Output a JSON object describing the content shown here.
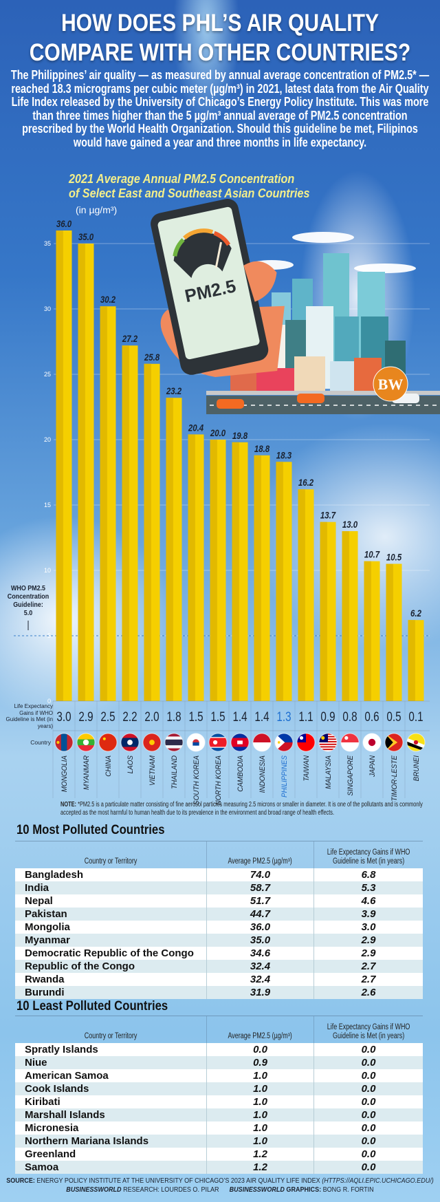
{
  "header": {
    "title_line1": "HOW DOES PHL’S AIR QUALITY",
    "title_line2": "COMPARE WITH OTHER COUNTRIES?",
    "intro": "The Philippines’ air quality — as measured by annual average concentration of PM2.5* — reached 18.3 micrograms per cubic meter (µg/m³) in 2021, latest data from the Air Quality Life Index released by the University of Chicago’s Energy Policy Institute. This was more than three times higher than the 5 µg/m³ annual average of PM2.5 concentration prescribed by the World Health Organization. Should this guideline be met, Filipinos would have gained a year and three months in life expectancy."
  },
  "chart_data": {
    "type": "bar",
    "title_line1": "2021 Average Annual PM2.5 Concentration",
    "title_line2": "of Select East and Southeast Asian Countries",
    "unit": "(in µg/m³)",
    "categories": [
      "MONGOLIA",
      "MYANMAR",
      "CHINA",
      "LAOS",
      "VIETNAM",
      "THAILAND",
      "SOUTH KOREA",
      "NORTH KOREA",
      "CAMBODIA",
      "INDONESIA",
      "PHILIPPINES",
      "TAIWAN",
      "MALAYSIA",
      "SINGAPORE",
      "JAPAN",
      "TIMOR-LESTE",
      "BRUNEI"
    ],
    "values": [
      36.0,
      35.0,
      30.2,
      27.2,
      25.8,
      23.2,
      20.4,
      20.0,
      19.8,
      18.8,
      18.3,
      16.2,
      13.7,
      13.0,
      10.7,
      10.5,
      6.2
    ],
    "value_labels": [
      "36.0",
      "35.0",
      "30.2",
      "27.2",
      "25.8",
      "23.2",
      "20.4",
      "20.0",
      "19.8",
      "18.8",
      "18.3",
      "16.2",
      "13.7",
      "13.0",
      "10.7",
      "10.5",
      "6.2"
    ],
    "life_expectancy_label": "Life Expectancy Gains if WHO Guideline is Met (in years)",
    "life_expectancy_gains": [
      "3.0",
      "2.9",
      "2.5",
      "2.2",
      "2.0",
      "1.8",
      "1.5",
      "1.5",
      "1.4",
      "1.4",
      "1.3",
      "1.1",
      "0.9",
      "0.8",
      "0.6",
      "0.5",
      "0.1"
    ],
    "country_label": "Country",
    "highlight": "PHILIPPINES",
    "ylim": [
      0,
      36
    ],
    "yticks": [
      "0",
      "5",
      "10",
      "15",
      "20",
      "25",
      "30",
      "35"
    ],
    "grid": true,
    "guideline": {
      "value": 5.0,
      "label_lines": [
        "WHO PM2.5",
        "Concentration",
        "Guideline:",
        "5.0"
      ]
    },
    "colors": {
      "bar": "#f5cf00",
      "bar_shade": "#e2b900",
      "highlight": "#1e6fd0",
      "text": "#1a2230"
    }
  },
  "flags": [
    "mongolia-flag-icon",
    "myanmar-flag-icon",
    "china-flag-icon",
    "laos-flag-icon",
    "vietnam-flag-icon",
    "thailand-flag-icon",
    "south-korea-flag-icon",
    "north-korea-flag-icon",
    "cambodia-flag-icon",
    "indonesia-flag-icon",
    "philippines-flag-icon",
    "taiwan-flag-icon",
    "malaysia-flag-icon",
    "singapore-flag-icon",
    "japan-flag-icon",
    "timor-leste-flag-icon",
    "brunei-flag-icon"
  ],
  "illustration": {
    "phone_text": "PM2.5",
    "logo": "BW"
  },
  "note": {
    "label": "NOTE:",
    "text": " *PM2.5 is a particulate matter consisting of fine aerosol particles measuring 2.5 microns or smaller in diameter. It is one of the pollutants and is commonly accepted as the most harmful to human health due to its prevalence in the environment and broad range of health effects."
  },
  "most_polluted": {
    "title": "10 Most Polluted Countries",
    "headers": [
      "Country or Territory",
      "Average PM2.5 (µg/m³)",
      "Life Expectancy Gains if WHO Guideline is Met (in years)"
    ],
    "rows": [
      [
        "Bangladesh",
        "74.0",
        "6.8"
      ],
      [
        "India",
        "58.7",
        "5.3"
      ],
      [
        "Nepal",
        "51.7",
        "4.6"
      ],
      [
        "Pakistan",
        "44.7",
        "3.9"
      ],
      [
        "Mongolia",
        "36.0",
        "3.0"
      ],
      [
        "Myanmar",
        "35.0",
        "2.9"
      ],
      [
        "Democratic Republic of the Congo",
        "34.6",
        "2.9"
      ],
      [
        "Republic of the Congo",
        "32.4",
        "2.7"
      ],
      [
        "Rwanda",
        "32.4",
        "2.7"
      ],
      [
        "Burundi",
        "31.9",
        "2.6"
      ]
    ]
  },
  "least_polluted": {
    "title": "10 Least Polluted Countries",
    "headers": [
      "Country or Territory",
      "Average PM2.5 (µg/m³)",
      "Life Expectancy Gains if WHO Guideline is Met (in years)"
    ],
    "rows": [
      [
        "Spratly Islands",
        "0.0",
        "0.0"
      ],
      [
        "Niue",
        "0.9",
        "0.0"
      ],
      [
        "American Samoa",
        "1.0",
        "0.0"
      ],
      [
        "Cook Islands",
        "1.0",
        "0.0"
      ],
      [
        "Kiribati",
        "1.0",
        "0.0"
      ],
      [
        "Marshall Islands",
        "1.0",
        "0.0"
      ],
      [
        "Micronesia",
        "1.0",
        "0.0"
      ],
      [
        "Northern Mariana Islands",
        "1.0",
        "0.0"
      ],
      [
        "Greenland",
        "1.2",
        "0.0"
      ],
      [
        "Samoa",
        "1.2",
        "0.0"
      ]
    ]
  },
  "footer": {
    "source_label": "SOURCE:",
    "source_text": " ENERGY POLICY INSTITUTE AT THE UNIVERSITY OF CHICAGO’S 2023 AIR QUALITY LIFE INDEX ",
    "source_url": "(HTTPS://AQLI.EPIC.UCHICAGO.EDU/)",
    "research_brand": "BUSINESSWORLD",
    "research_text": " RESEARCH: LOURDES O. PILAR",
    "graphics_brand": "BUSINESSWORLD",
    "graphics_label": " GRAPHICS:",
    "graphics_text": " BONG R. FORTIN"
  }
}
